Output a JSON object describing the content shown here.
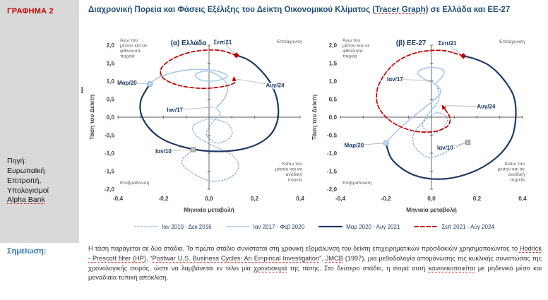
{
  "sidebar": {
    "figure_label": "ΓΡΑΦΗΜΑ 2",
    "source_segments": [
      {
        "text": "Πηγή: Ευρωπαϊκή Επιτροπή, Υπολογισμοί ",
        "underline": false
      },
      {
        "text": "Alpha Bank",
        "underline": true
      }
    ]
  },
  "note": {
    "label": "Σημείωση:",
    "segments": [
      {
        "text": "Η τάση παράγεται σε δύο στάδια. Το πρώτο στάδιο συνίσταται στη χρονική εξομάλυνση του δείκτη επιχειρηματικών προσδοκιών χρησιμοποιώντας το ",
        "underline": false
      },
      {
        "text": "Hodrick - Prescott filter (HP)",
        "underline": true
      },
      {
        "text": ", “",
        "underline": false
      },
      {
        "text": "Postwar U.S. Business Cycles: An Empirical Investigation",
        "underline": true
      },
      {
        "text": "”, ",
        "underline": false
      },
      {
        "text": "JMCB",
        "underline": true
      },
      {
        "text": " (1997), μια μεθοδολογία απομόνωσης της κυκλικής συνιστώσας της χρονολογικής σειράς, ώστε να λαμβάνεται εν τέλει μία ",
        "underline": false
      },
      {
        "text": "χρονοσειρά",
        "underline": true
      },
      {
        "text": " της τάσης. Στο δεύτερο στάδιο, η σειρά αυτή ",
        "underline": false
      },
      {
        "text": "κανονικοποιείται",
        "underline": true
      },
      {
        "text": " με μηδενικό μέσο και μοναδιαία τυπική απόκλιση.",
        "underline": false
      }
    ]
  },
  "title_segments": [
    {
      "text": "Διαχρονική Πορεία και Φάσεις Εξέλιξης του Δείκτη Οικονομικού Κλίματος (",
      "underline": false
    },
    {
      "text": "Tracer Graph",
      "underline": true
    },
    {
      "text": ") σε Ελλάδα και ΕΕ-27",
      "underline": false
    }
  ],
  "cursor_artifact": "I",
  "legend": {
    "position": "bottom",
    "items": [
      {
        "label": "Ιαν 2010 - Δεκ 2016",
        "style": "dotted",
        "color": "#7FA8D4"
      },
      {
        "label": "Ιαν 2017 - Φεβ 2020",
        "style": "solid",
        "color": "#A9C9E8"
      },
      {
        "label": "Μαρ 2020 - Αυγ 2021",
        "style": "solid-thick",
        "color": "#1F3864"
      },
      {
        "label": "Σεπ 2021 - Αύγ 2024",
        "style": "dashed",
        "color": "#C00000"
      }
    ]
  },
  "chart_data": [
    {
      "type": "line",
      "title": "(α) Ελλάδα",
      "xlabel": "Μηνιαία μεταβολή",
      "ylabel": "Τάση του Δείκτη",
      "xlim": [
        -0.4,
        0.4
      ],
      "ylim": [
        -2.0,
        2.0
      ],
      "grid": false,
      "x_ticks": [
        {
          "v": -0.4,
          "t": "-0,4"
        },
        {
          "v": -0.2,
          "t": "-0,2"
        },
        {
          "v": 0,
          "t": "0,0"
        },
        {
          "v": 0.2,
          "t": "0,2"
        },
        {
          "v": 0.4,
          "t": "0,4"
        }
      ],
      "y_ticks": [
        {
          "v": 2,
          "t": "2,0"
        },
        {
          "v": 1.5,
          "t": "1,5"
        },
        {
          "v": 1,
          "t": "1,0"
        },
        {
          "v": 0.5,
          "t": "0,5"
        },
        {
          "v": 0,
          "t": "0,0"
        },
        {
          "v": -0.5,
          "t": "-0,5"
        },
        {
          "v": -1,
          "t": "-1,0"
        },
        {
          "v": -1.5,
          "t": "-1,5"
        },
        {
          "v": -2,
          "t": "-2,0"
        }
      ],
      "quadrants": {
        "top_left": [
          "Άνω του",
          "μέσου και σε",
          "φθίνουσα",
          "πορεία"
        ],
        "top_right": "Επιτάχυνση",
        "bottom_left": "Επιβράδυνση",
        "bottom_right": [
          "Κάτω του",
          "μέσου και σε",
          "ανοδική",
          "πορεία"
        ]
      },
      "series": [
        {
          "name": "Ιαν 2010 - Δεκ 2016",
          "style": "dotted",
          "color": "#7FA8D4",
          "points": [
            [
              -0.07,
              -0.9
            ],
            [
              -0.12,
              -1.25
            ],
            [
              -0.06,
              -1.6
            ],
            [
              0.02,
              -1.78
            ],
            [
              0.1,
              -1.65
            ],
            [
              0.13,
              -1.35
            ],
            [
              0.1,
              -1.05
            ],
            [
              0.02,
              -0.8
            ],
            [
              -0.05,
              -0.55
            ],
            [
              -0.07,
              -0.25
            ],
            [
              0.0,
              -0.05
            ],
            [
              0.08,
              -0.18
            ],
            [
              0.1,
              -0.5
            ],
            [
              0.04,
              -0.72
            ],
            [
              -0.01,
              -0.5
            ],
            [
              0.01,
              -0.18
            ],
            [
              0.05,
              0.08
            ],
            [
              0.03,
              0.25
            ]
          ]
        },
        {
          "name": "Ιαν 2017 - Φεβ 2020",
          "style": "solid",
          "color": "#A9C9E8",
          "points": [
            [
              0.03,
              0.25
            ],
            [
              0.07,
              0.55
            ],
            [
              0.08,
              0.88
            ],
            [
              0.05,
              1.12
            ],
            [
              -0.01,
              1.28
            ],
            [
              -0.06,
              1.18
            ],
            [
              -0.03,
              1.02
            ],
            [
              0.04,
              1.02
            ],
            [
              0.08,
              1.15
            ],
            [
              0.02,
              1.3
            ],
            [
              -0.08,
              1.32
            ],
            [
              -0.17,
              1.22
            ],
            [
              -0.23,
              1.07
            ],
            [
              -0.26,
              0.92
            ]
          ]
        },
        {
          "name": "Μαρ 2020 - Αυγ 2021",
          "style": "solid-thick",
          "color": "#1F3864",
          "points": [
            [
              -0.26,
              0.92
            ],
            [
              -0.3,
              0.45
            ],
            [
              -0.29,
              -0.05
            ],
            [
              -0.22,
              -0.55
            ],
            [
              -0.1,
              -0.85
            ],
            [
              0.04,
              -0.95
            ],
            [
              0.17,
              -0.85
            ],
            [
              0.26,
              -0.55
            ],
            [
              0.3,
              -0.1
            ],
            [
              0.3,
              0.45
            ],
            [
              0.27,
              0.95
            ],
            [
              0.22,
              1.35
            ],
            [
              0.17,
              1.6
            ],
            [
              0.12,
              1.72
            ]
          ]
        },
        {
          "name": "Σεπ 2021 - Αύγ 2024",
          "style": "dashed",
          "color": "#C00000",
          "arrow_end": true,
          "points": [
            [
              0.12,
              1.72
            ],
            [
              0.04,
              1.86
            ],
            [
              -0.07,
              1.82
            ],
            [
              -0.16,
              1.62
            ],
            [
              -0.21,
              1.35
            ],
            [
              -0.2,
              1.08
            ],
            [
              -0.13,
              0.88
            ],
            [
              -0.03,
              0.8
            ],
            [
              0.06,
              0.85
            ],
            [
              0.11,
              0.95
            ],
            [
              0.11,
              1.08
            ]
          ]
        }
      ],
      "annotations": [
        {
          "text": "Μαρ/20",
          "label": [
            -0.36,
            0.95
          ],
          "point": [
            -0.26,
            0.92
          ],
          "marker": "circle"
        },
        {
          "text": "Ιαν/17",
          "label": [
            -0.15,
            0.2
          ],
          "point": [
            0.02,
            0.28
          ],
          "marker": null
        },
        {
          "text": "Ιαν/10",
          "label": [
            -0.2,
            -0.95
          ],
          "point": [
            -0.07,
            -0.9
          ],
          "marker": "square"
        },
        {
          "text": "Σεπ/21",
          "label": [
            0.06,
            2.08
          ],
          "point": [
            0.12,
            1.72
          ],
          "marker": "diamond"
        },
        {
          "text": "Αυγ/24",
          "label": [
            0.29,
            0.88
          ],
          "point": [
            0.12,
            1.06
          ],
          "marker": null
        }
      ]
    },
    {
      "type": "line",
      "title": "(β) ΕΕ-27",
      "xlabel": "Μηνιαία μεταβολή",
      "ylabel": "Τάση του Δείκτη",
      "xlim": [
        -0.4,
        0.4
      ],
      "ylim": [
        -2.0,
        2.0
      ],
      "grid": false,
      "x_ticks": [
        {
          "v": -0.4,
          "t": "-0,4"
        },
        {
          "v": -0.2,
          "t": "-0,2"
        },
        {
          "v": 0,
          "t": "0,0"
        },
        {
          "v": 0.2,
          "t": "0,2"
        },
        {
          "v": 0.4,
          "t": "0,4"
        }
      ],
      "y_ticks": [
        {
          "v": 2,
          "t": "2,0"
        },
        {
          "v": 1.5,
          "t": "1,5"
        },
        {
          "v": 1,
          "t": "1,0"
        },
        {
          "v": 0.5,
          "t": "0,5"
        },
        {
          "v": 0,
          "t": "0,0"
        },
        {
          "v": -0.5,
          "t": "-0,5"
        },
        {
          "v": -1,
          "t": "-1,0"
        },
        {
          "v": -1.5,
          "t": "-1,5"
        },
        {
          "v": -2,
          "t": "-2,0"
        }
      ],
      "quadrants": {
        "top_left": [
          "Άνω του",
          "μέσου και σε",
          "φθίνουσα",
          "πορεία"
        ],
        "top_right": "Επιτάχυνση",
        "bottom_left": "Επιβράδυνση",
        "bottom_right": [
          "Κάτω του",
          "μέσου και σε",
          "ανοδική",
          "πορεία"
        ]
      },
      "series": [
        {
          "name": "Ιαν 2010 - Δεκ 2016",
          "style": "dotted",
          "color": "#7FA8D4",
          "points": [
            [
              0.15,
              -0.7
            ],
            [
              0.07,
              -0.95
            ],
            [
              -0.01,
              -1.12
            ],
            [
              -0.07,
              -0.85
            ],
            [
              -0.08,
              -0.5
            ],
            [
              -0.04,
              -0.15
            ],
            [
              0.02,
              0.12
            ],
            [
              0.07,
              -0.02
            ],
            [
              0.05,
              -0.3
            ],
            [
              0.0,
              -0.45
            ],
            [
              -0.04,
              -0.22
            ],
            [
              -0.01,
              0.12
            ],
            [
              0.03,
              0.45
            ],
            [
              0.03,
              0.72
            ],
            [
              0.02,
              0.95
            ]
          ]
        },
        {
          "name": "Ιαν 2017 - Φεβ 2020",
          "style": "solid",
          "color": "#A9C9E8",
          "points": [
            [
              0.02,
              0.95
            ],
            [
              0.05,
              1.15
            ],
            [
              0.05,
              1.32
            ],
            [
              -0.01,
              1.38
            ],
            [
              -0.06,
              1.25
            ],
            [
              -0.03,
              1.05
            ],
            [
              0.02,
              0.9
            ],
            [
              0.04,
              0.68
            ],
            [
              0.0,
              0.42
            ],
            [
              -0.06,
              0.12
            ],
            [
              -0.12,
              -0.2
            ],
            [
              -0.17,
              -0.5
            ],
            [
              -0.2,
              -0.72
            ]
          ]
        },
        {
          "name": "Μαρ 2020 - Αυγ 2021",
          "style": "solid-thick",
          "color": "#1F3864",
          "points": [
            [
              -0.2,
              -0.72
            ],
            [
              -0.17,
              -1.2
            ],
            [
              -0.08,
              -1.6
            ],
            [
              0.04,
              -1.72
            ],
            [
              0.17,
              -1.55
            ],
            [
              0.28,
              -1.15
            ],
            [
              0.35,
              -0.6
            ],
            [
              0.37,
              0.0
            ],
            [
              0.36,
              0.6
            ],
            [
              0.31,
              1.1
            ],
            [
              0.25,
              1.45
            ],
            [
              0.19,
              1.62
            ],
            [
              0.14,
              1.7
            ]
          ]
        },
        {
          "name": "Σεπ 2021 - Αύγ 2024",
          "style": "dashed",
          "color": "#C00000",
          "arrow_end": true,
          "points": [
            [
              0.14,
              1.7
            ],
            [
              0.05,
              1.85
            ],
            [
              -0.06,
              1.8
            ],
            [
              -0.15,
              1.55
            ],
            [
              -0.21,
              1.15
            ],
            [
              -0.24,
              0.7
            ],
            [
              -0.23,
              0.25
            ],
            [
              -0.17,
              -0.15
            ],
            [
              -0.08,
              -0.38
            ],
            [
              0.01,
              -0.4
            ],
            [
              0.07,
              -0.25
            ],
            [
              0.08,
              0.0
            ],
            [
              0.05,
              0.3
            ]
          ]
        }
      ],
      "annotations": [
        {
          "text": "Ιαν/17",
          "label": [
            -0.16,
            1.05
          ],
          "point": [
            0.01,
            1.02
          ],
          "marker": null
        },
        {
          "text": "Μαρ/20",
          "label": [
            -0.34,
            -0.78
          ],
          "point": [
            -0.2,
            -0.72
          ],
          "marker": "circle"
        },
        {
          "text": "Ιαν/10",
          "label": [
            0.06,
            -0.85
          ],
          "point": [
            0.16,
            -0.7
          ],
          "marker": "square"
        },
        {
          "text": "Σεπ/21",
          "label": [
            0.07,
            2.05
          ],
          "point": [
            0.14,
            1.7
          ],
          "marker": "diamond"
        },
        {
          "text": "Αυγ/24",
          "label": [
            0.24,
            0.3
          ],
          "point": [
            0.06,
            0.32
          ],
          "marker": null
        }
      ]
    }
  ]
}
